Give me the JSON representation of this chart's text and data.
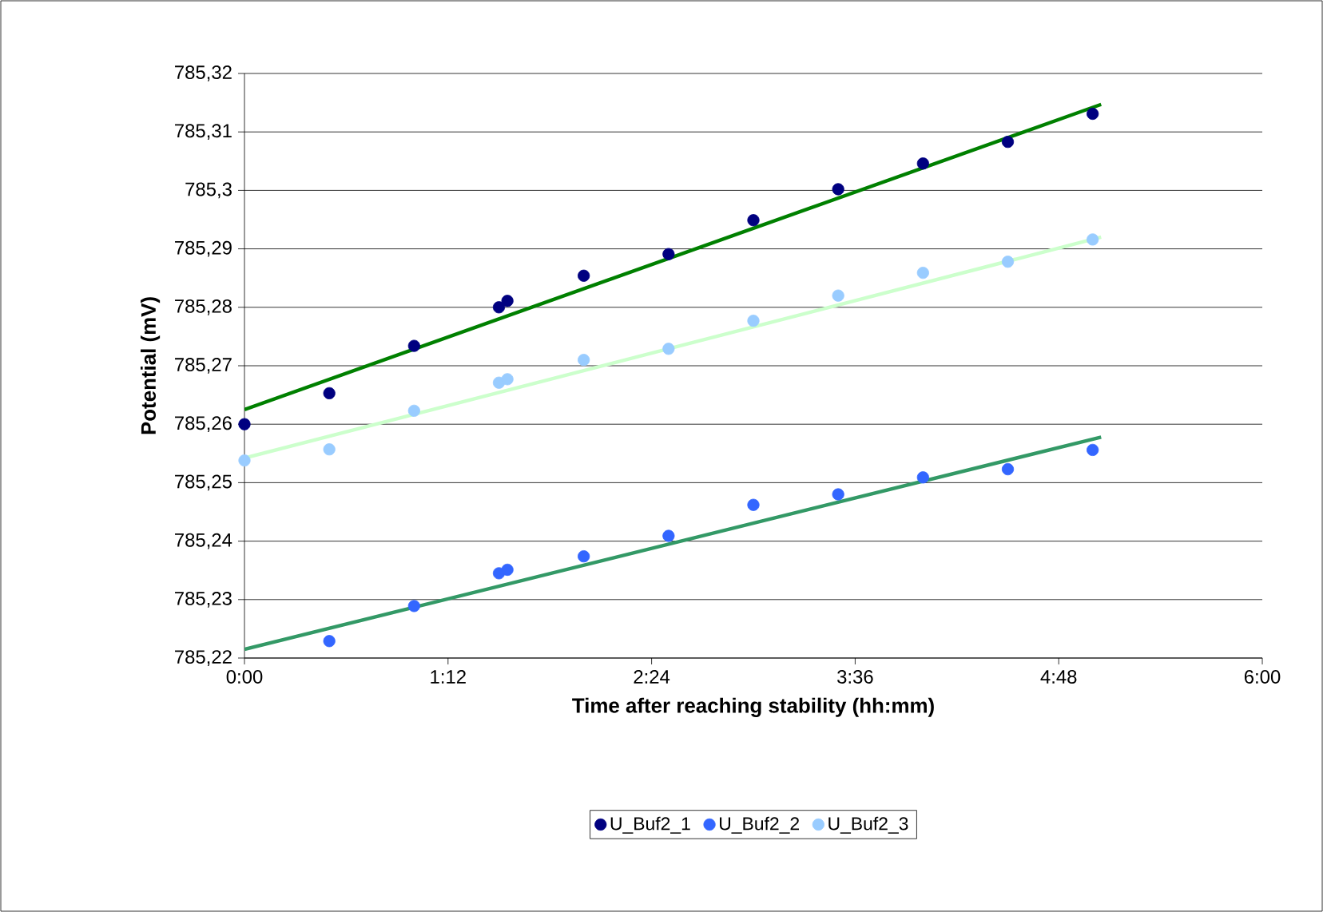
{
  "chart_data": {
    "type": "scatter",
    "xlabel": "Time after reaching stability (hh:mm)",
    "ylabel": "Potential (mV)",
    "x": [
      0,
      0.5,
      1,
      1.5,
      1.55,
      2,
      2.5,
      3,
      3.5,
      4,
      4.5,
      5
    ],
    "series": [
      {
        "name": "U_Buf2_1",
        "color": "#000080",
        "values": [
          785.26,
          785.2653,
          785.2734,
          785.28,
          785.2811,
          785.2854,
          785.2891,
          785.2949,
          785.3002,
          785.3046,
          785.3083,
          785.3131
        ]
      },
      {
        "name": "U_Buf2_2",
        "color": "#3366ff",
        "x": [
          0.5,
          1,
          1.5,
          1.55,
          2,
          2.5,
          3,
          3.5,
          4,
          4.5,
          5
        ],
        "values": [
          785.2229,
          785.2289,
          785.2345,
          785.2351,
          785.2374,
          785.2409,
          785.2462,
          785.248,
          785.2509,
          785.2523,
          785.2556
        ]
      },
      {
        "name": "U_Buf2_3",
        "color": "#99ccff",
        "values": [
          785.2538,
          785.2557,
          785.2623,
          785.2671,
          785.2677,
          785.271,
          785.2729,
          785.2777,
          785.282,
          785.2859,
          785.2878,
          785.2916
        ]
      },
      {
        "type": "line",
        "marker": "none",
        "color": "#008000",
        "x": [
          0,
          5.05
        ],
        "values": [
          785.2625,
          785.3147
        ]
      },
      {
        "type": "line",
        "marker": "none",
        "color": "#339966",
        "x": [
          0,
          5.05
        ],
        "values": [
          785.2215,
          785.2578
        ]
      },
      {
        "type": "line",
        "marker": "none",
        "color": "#ccffcc",
        "x": [
          0,
          5.05
        ],
        "values": [
          785.2542,
          785.292
        ]
      }
    ],
    "xlim": [
      0,
      6
    ],
    "xticks": [
      {
        "value": 0,
        "label": "0:00"
      },
      {
        "value": 1.2,
        "label": "1:12"
      },
      {
        "value": 2.4,
        "label": "2:24"
      },
      {
        "value": 3.6,
        "label": "3:36"
      },
      {
        "value": 4.8,
        "label": "4:48"
      },
      {
        "value": 6,
        "label": "6:00"
      }
    ],
    "ylim": [
      785.22,
      785.32
    ],
    "yticks": [
      {
        "value": 785.22,
        "label": "785,22"
      },
      {
        "value": 785.23,
        "label": "785,23"
      },
      {
        "value": 785.24,
        "label": "785,24"
      },
      {
        "value": 785.25,
        "label": "785,25"
      },
      {
        "value": 785.26,
        "label": "785,26"
      },
      {
        "value": 785.27,
        "label": "785,27"
      },
      {
        "value": 785.28,
        "label": "785,28"
      },
      {
        "value": 785.29,
        "label": "785,29"
      },
      {
        "value": 785.3,
        "label": "785,3"
      },
      {
        "value": 785.31,
        "label": "785,31"
      },
      {
        "value": 785.32,
        "label": "785,32"
      }
    ],
    "grid": "y",
    "legend": "bottom",
    "marker": "circle"
  }
}
